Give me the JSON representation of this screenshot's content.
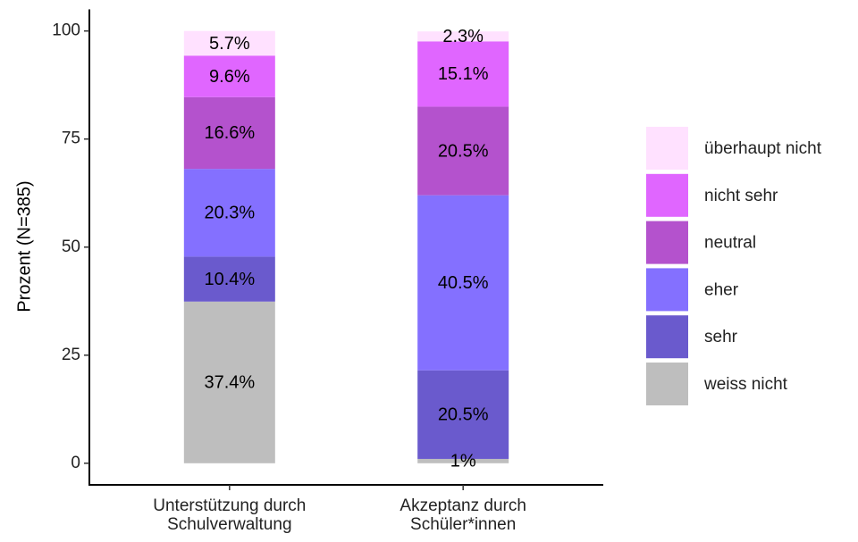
{
  "chart_data": {
    "type": "stacked_bar",
    "categories": [
      "Unterstützung durch\nSchulverwaltung",
      "Akzeptanz durch\nSchüler*innen"
    ],
    "y_label": "Prozent (N=385)",
    "ylim": [
      -5,
      105
    ],
    "yticks": [
      0,
      25,
      50,
      75,
      100
    ],
    "series": [
      {
        "name": "weiss nicht",
        "color": "#bebebe",
        "values": [
          37.4,
          1
        ],
        "value_labels": [
          "37.4%",
          "1%"
        ]
      },
      {
        "name": "sehr",
        "color": "#6a5acd",
        "values": [
          10.4,
          20.5
        ],
        "value_labels": [
          "10.4%",
          "20.5%"
        ]
      },
      {
        "name": "eher",
        "color": "#8470ff",
        "values": [
          20.3,
          40.5
        ],
        "value_labels": [
          "20.3%",
          "40.5%"
        ]
      },
      {
        "name": "neutral",
        "color": "#b452cd",
        "values": [
          16.6,
          20.5
        ],
        "value_labels": [
          "16.6%",
          "20.5%"
        ]
      },
      {
        "name": "nicht sehr",
        "color": "#e066ff",
        "values": [
          9.6,
          15.1
        ],
        "value_labels": [
          "9.6%",
          "15.1%"
        ]
      },
      {
        "name": "überhaupt nicht",
        "color": "#ffe1ff",
        "values": [
          5.7,
          2.3
        ],
        "value_labels": [
          "5.7%",
          "2.3%"
        ]
      }
    ]
  }
}
